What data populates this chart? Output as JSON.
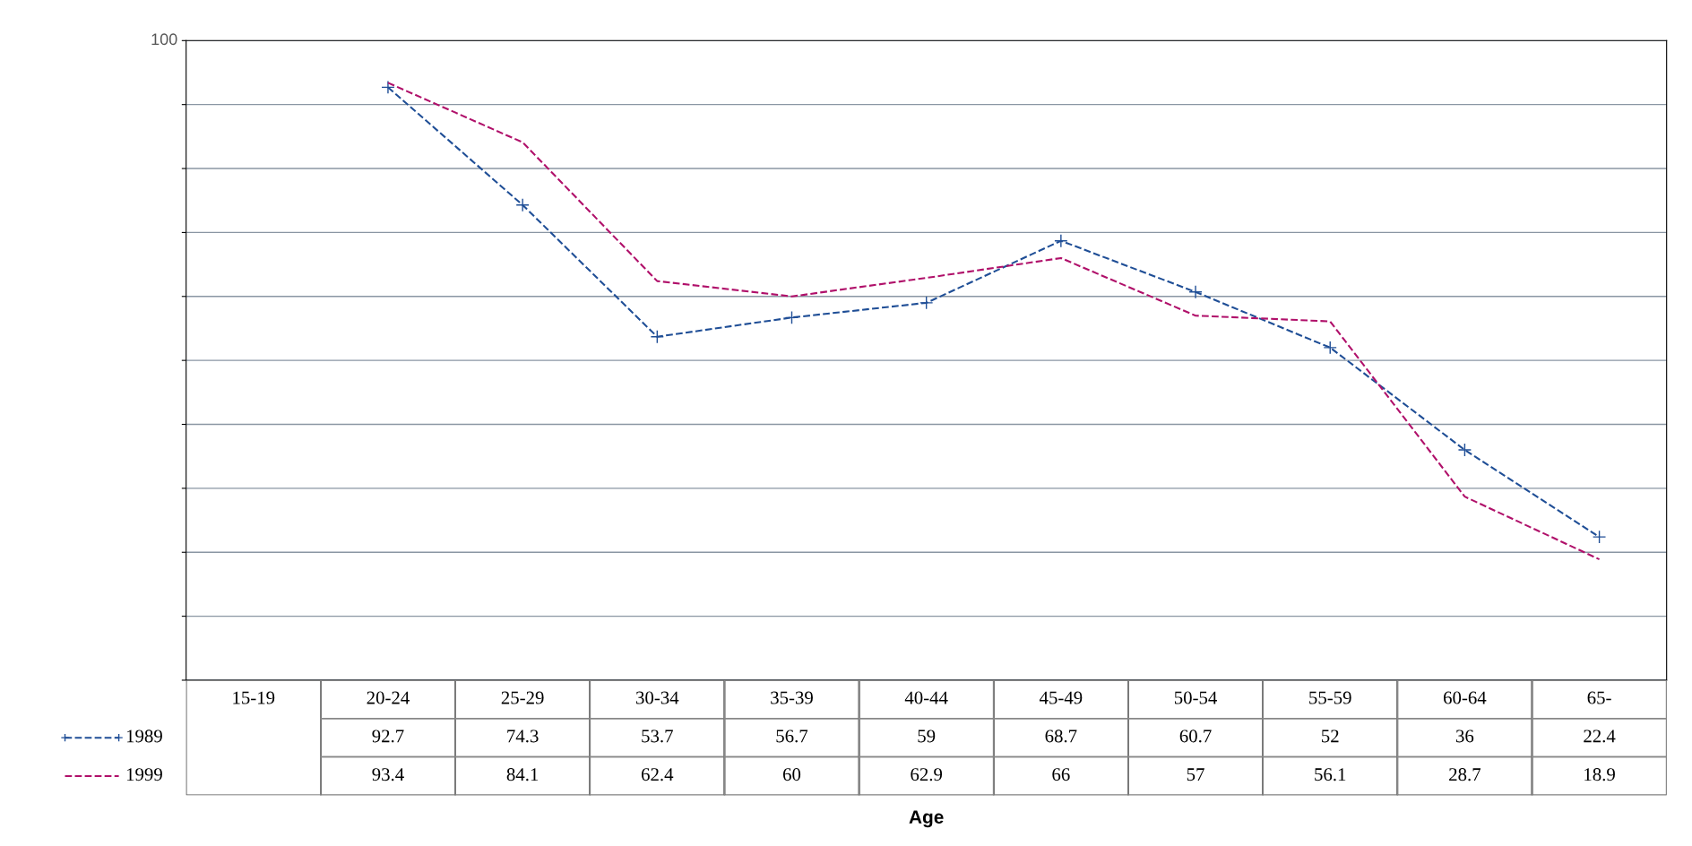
{
  "chart_data": {
    "type": "line",
    "categories": [
      "15-19",
      "20-24",
      "25-29",
      "30-34",
      "35-39",
      "40-44",
      "45-49",
      "50-54",
      "55-59",
      "60-64",
      "65-"
    ],
    "series": [
      {
        "name": "1989",
        "color": "#1f4e96",
        "line_style": "dashed",
        "marker": "cross",
        "values": [
          null,
          92.7,
          74.3,
          53.7,
          56.7,
          59,
          68.7,
          60.7,
          52,
          36,
          22.4
        ]
      },
      {
        "name": "1999",
        "color": "#b0106a",
        "line_style": "dashed",
        "marker": "none",
        "values": [
          null,
          93.4,
          84.1,
          62.4,
          60,
          62.9,
          66,
          57,
          56.1,
          28.7,
          18.9
        ]
      }
    ],
    "ylim": [
      0,
      100
    ],
    "yticks": [
      {
        "value": 0,
        "label": null
      },
      {
        "value": 10,
        "label": null
      },
      {
        "value": 20,
        "label": null
      },
      {
        "value": 30,
        "label": null
      },
      {
        "value": 40,
        "label": null
      },
      {
        "value": 50,
        "label": null
      },
      {
        "value": 60,
        "label": null
      },
      {
        "value": 70,
        "label": null
      },
      {
        "value": 80,
        "label": null
      },
      {
        "value": 90,
        "label": null
      },
      {
        "value": 100,
        "label": null
      }
    ],
    "annotations": [
      "100",
      "Age"
    ],
    "grid": "y",
    "data_labels": true,
    "legend": "bottom left"
  }
}
